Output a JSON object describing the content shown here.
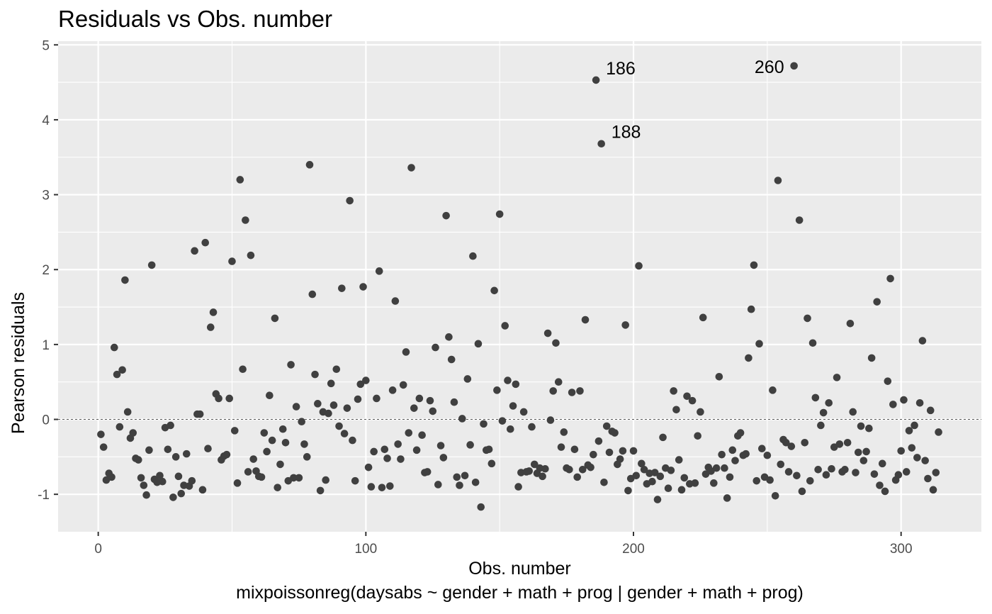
{
  "chart_data": {
    "type": "scatter",
    "title": "Residuals vs Obs. number",
    "xlabel": "Obs. number",
    "ylabel": "Pearson residuals",
    "caption": "mixpoissonreg(daysabs ~ gender + math + prog | gender + math + prog)",
    "xlim": [
      -15,
      330
    ],
    "ylim": [
      -1.5,
      5.05
    ],
    "x_ticks": [
      0,
      100,
      200,
      300
    ],
    "y_ticks": [
      -1,
      0,
      1,
      2,
      3,
      4,
      5
    ],
    "x_tick_labels": [
      "0",
      "100",
      "200",
      "300"
    ],
    "y_tick_labels": [
      "-1",
      "0",
      "1",
      "2",
      "3",
      "4",
      "5"
    ],
    "reference_line": 0,
    "grid": true,
    "panel_color": "#EBEBEB",
    "point_color": "#404040",
    "points": [
      [
        1,
        -0.2
      ],
      [
        2,
        -0.37
      ],
      [
        3,
        -0.81
      ],
      [
        4,
        -0.72
      ],
      [
        5,
        -0.77
      ],
      [
        6,
        0.96
      ],
      [
        7,
        0.6
      ],
      [
        8,
        -0.1
      ],
      [
        9,
        0.66
      ],
      [
        10,
        1.86
      ],
      [
        11,
        0.1
      ],
      [
        12,
        -0.25
      ],
      [
        13,
        -0.18
      ],
      [
        14,
        -0.52
      ],
      [
        15,
        -0.54
      ],
      [
        16,
        -0.78
      ],
      [
        17,
        -0.88
      ],
      [
        18,
        -1.01
      ],
      [
        19,
        -0.41
      ],
      [
        20,
        2.06
      ],
      [
        21,
        -0.8
      ],
      [
        22,
        -0.84
      ],
      [
        23,
        -0.75
      ],
      [
        24,
        -0.83
      ],
      [
        25,
        -0.11
      ],
      [
        26,
        -0.4
      ],
      [
        27,
        -0.08
      ],
      [
        28,
        -1.04
      ],
      [
        29,
        -0.5
      ],
      [
        30,
        -0.76
      ],
      [
        31,
        -0.99
      ],
      [
        32,
        -0.88
      ],
      [
        33,
        -0.46
      ],
      [
        34,
        -0.89
      ],
      [
        35,
        -0.82
      ],
      [
        36,
        2.25
      ],
      [
        37,
        0.07
      ],
      [
        38,
        0.07
      ],
      [
        39,
        -0.94
      ],
      [
        40,
        2.36
      ],
      [
        41,
        -0.39
      ],
      [
        42,
        1.23
      ],
      [
        43,
        1.43
      ],
      [
        44,
        0.34
      ],
      [
        45,
        0.28
      ],
      [
        46,
        -0.54
      ],
      [
        47,
        -0.49
      ],
      [
        48,
        -0.47
      ],
      [
        49,
        0.28
      ],
      [
        50,
        2.11
      ],
      [
        51,
        -0.15
      ],
      [
        52,
        -0.85
      ],
      [
        53,
        3.2
      ],
      [
        54,
        0.67
      ],
      [
        55,
        2.66
      ],
      [
        56,
        -0.7
      ],
      [
        57,
        2.19
      ],
      [
        58,
        -0.53
      ],
      [
        59,
        -0.69
      ],
      [
        60,
        -0.76
      ],
      [
        61,
        -0.77
      ],
      [
        62,
        -0.18
      ],
      [
        63,
        -0.43
      ],
      [
        64,
        0.32
      ],
      [
        65,
        -0.28
      ],
      [
        66,
        1.35
      ],
      [
        67,
        -0.91
      ],
      [
        68,
        -0.6
      ],
      [
        69,
        -0.13
      ],
      [
        70,
        -0.31
      ],
      [
        71,
        -0.82
      ],
      [
        72,
        0.73
      ],
      [
        73,
        -0.78
      ],
      [
        74,
        0.17
      ],
      [
        75,
        -0.78
      ],
      [
        76,
        -0.03
      ],
      [
        77,
        -0.33
      ],
      [
        78,
        -0.5
      ],
      [
        79,
        3.4
      ],
      [
        80,
        1.67
      ],
      [
        81,
        0.6
      ],
      [
        82,
        0.21
      ],
      [
        83,
        -0.95
      ],
      [
        84,
        0.1
      ],
      [
        85,
        -0.81
      ],
      [
        86,
        0.08
      ],
      [
        87,
        0.48
      ],
      [
        88,
        0.19
      ],
      [
        89,
        0.67
      ],
      [
        90,
        -0.09
      ],
      [
        91,
        1.75
      ],
      [
        92,
        -0.19
      ],
      [
        93,
        0.15
      ],
      [
        94,
        2.92
      ],
      [
        95,
        -0.28
      ],
      [
        96,
        -0.82
      ],
      [
        97,
        0.27
      ],
      [
        98,
        0.47
      ],
      [
        99,
        1.77
      ],
      [
        100,
        0.52
      ],
      [
        101,
        -0.64
      ],
      [
        102,
        -0.9
      ],
      [
        103,
        -0.43
      ],
      [
        104,
        0.28
      ],
      [
        105,
        1.98
      ],
      [
        106,
        -0.91
      ],
      [
        107,
        -0.4
      ],
      [
        108,
        -0.52
      ],
      [
        109,
        -0.89
      ],
      [
        110,
        0.39
      ],
      [
        111,
        1.58
      ],
      [
        112,
        -0.33
      ],
      [
        113,
        -0.53
      ],
      [
        114,
        0.46
      ],
      [
        115,
        0.9
      ],
      [
        116,
        -0.18
      ],
      [
        117,
        3.36
      ],
      [
        118,
        0.15
      ],
      [
        119,
        -0.41
      ],
      [
        120,
        0.28
      ],
      [
        121,
        -0.21
      ],
      [
        122,
        -0.71
      ],
      [
        123,
        -0.7
      ],
      [
        124,
        0.25
      ],
      [
        125,
        0.11
      ],
      [
        126,
        0.96
      ],
      [
        127,
        -0.87
      ],
      [
        128,
        -0.35
      ],
      [
        129,
        -0.51
      ],
      [
        130,
        2.72
      ],
      [
        131,
        1.1
      ],
      [
        132,
        0.8
      ],
      [
        133,
        0.23
      ],
      [
        134,
        -0.77
      ],
      [
        135,
        -0.88
      ],
      [
        136,
        0.01
      ],
      [
        137,
        -0.75
      ],
      [
        138,
        0.54
      ],
      [
        139,
        -0.34
      ],
      [
        140,
        2.18
      ],
      [
        141,
        -0.84
      ],
      [
        142,
        1.01
      ],
      [
        143,
        -1.17
      ],
      [
        144,
        -0.06
      ],
      [
        145,
        -0.41
      ],
      [
        146,
        -0.4
      ],
      [
        147,
        -0.59
      ],
      [
        148,
        1.72
      ],
      [
        149,
        0.39
      ],
      [
        150,
        2.74
      ],
      [
        151,
        -0.02
      ],
      [
        152,
        1.25
      ],
      [
        153,
        0.52
      ],
      [
        154,
        -0.13
      ],
      [
        155,
        0.18
      ],
      [
        156,
        0.47
      ],
      [
        157,
        -0.9
      ],
      [
        158,
        -0.71
      ],
      [
        159,
        0.1
      ],
      [
        160,
        -0.7
      ],
      [
        161,
        -0.69
      ],
      [
        162,
        -0.1
      ],
      [
        163,
        -0.6
      ],
      [
        164,
        -0.72
      ],
      [
        165,
        -0.65
      ],
      [
        166,
        -0.76
      ],
      [
        167,
        -0.66
      ],
      [
        168,
        1.15
      ],
      [
        169,
        -0.01
      ],
      [
        170,
        0.38
      ],
      [
        171,
        1.02
      ],
      [
        172,
        0.5
      ],
      [
        173,
        -0.37
      ],
      [
        174,
        -0.17
      ],
      [
        175,
        -0.65
      ],
      [
        176,
        -0.67
      ],
      [
        177,
        0.36
      ],
      [
        178,
        -0.4
      ],
      [
        179,
        -0.77
      ],
      [
        180,
        0.38
      ],
      [
        181,
        -0.67
      ],
      [
        182,
        1.33
      ],
      [
        183,
        -0.61
      ],
      [
        184,
        -0.64
      ],
      [
        185,
        -0.47
      ],
      [
        186,
        4.53
      ],
      [
        187,
        -0.29
      ],
      [
        188,
        3.68
      ],
      [
        189,
        -0.84
      ],
      [
        190,
        -0.09
      ],
      [
        191,
        -0.44
      ],
      [
        192,
        -0.16
      ],
      [
        193,
        -0.18
      ],
      [
        194,
        -0.6
      ],
      [
        195,
        -0.53
      ],
      [
        196,
        -0.42
      ],
      [
        197,
        1.26
      ],
      [
        198,
        -0.95
      ],
      [
        199,
        -0.79
      ],
      [
        200,
        -0.42
      ],
      [
        201,
        -0.75
      ],
      [
        202,
        2.05
      ],
      [
        203,
        -0.59
      ],
      [
        204,
        -0.67
      ],
      [
        205,
        -0.86
      ],
      [
        206,
        -0.72
      ],
      [
        207,
        -0.83
      ],
      [
        208,
        -0.71
      ],
      [
        209,
        -1.07
      ],
      [
        210,
        -0.76
      ],
      [
        211,
        -0.24
      ],
      [
        212,
        -0.65
      ],
      [
        213,
        -0.92
      ],
      [
        214,
        -0.68
      ],
      [
        215,
        0.38
      ],
      [
        216,
        0.13
      ],
      [
        217,
        -0.54
      ],
      [
        218,
        -0.94
      ],
      [
        219,
        -0.78
      ],
      [
        220,
        0.31
      ],
      [
        221,
        -0.86
      ],
      [
        222,
        0.25
      ],
      [
        223,
        -0.85
      ],
      [
        224,
        -0.22
      ],
      [
        225,
        0.1
      ],
      [
        226,
        1.36
      ],
      [
        227,
        -0.73
      ],
      [
        228,
        -0.64
      ],
      [
        229,
        -0.69
      ],
      [
        230,
        -0.85
      ],
      [
        231,
        -0.65
      ],
      [
        232,
        0.57
      ],
      [
        233,
        -0.47
      ],
      [
        234,
        -0.65
      ],
      [
        235,
        -1.05
      ],
      [
        236,
        -0.77
      ],
      [
        237,
        -0.41
      ],
      [
        238,
        -0.55
      ],
      [
        239,
        -0.22
      ],
      [
        240,
        -0.18
      ],
      [
        241,
        -0.48
      ],
      [
        242,
        -0.46
      ],
      [
        243,
        0.82
      ],
      [
        244,
        1.47
      ],
      [
        245,
        2.06
      ],
      [
        246,
        -0.82
      ],
      [
        247,
        1.01
      ],
      [
        248,
        -0.39
      ],
      [
        249,
        -0.77
      ],
      [
        250,
        -0.48
      ],
      [
        251,
        -0.81
      ],
      [
        252,
        0.39
      ],
      [
        253,
        -1.02
      ],
      [
        254,
        3.19
      ],
      [
        255,
        -0.6
      ],
      [
        256,
        -0.27
      ],
      [
        257,
        -0.31
      ],
      [
        258,
        -0.7
      ],
      [
        259,
        -0.36
      ],
      [
        260,
        4.72
      ],
      [
        261,
        -0.75
      ],
      [
        262,
        2.66
      ],
      [
        263,
        -0.96
      ],
      [
        264,
        -0.31
      ],
      [
        265,
        1.35
      ],
      [
        266,
        -0.82
      ],
      [
        267,
        1.02
      ],
      [
        268,
        0.29
      ],
      [
        269,
        -0.67
      ],
      [
        270,
        -0.08
      ],
      [
        271,
        0.09
      ],
      [
        272,
        -0.74
      ],
      [
        273,
        0.22
      ],
      [
        274,
        -0.66
      ],
      [
        275,
        -0.37
      ],
      [
        276,
        0.56
      ],
      [
        277,
        -0.33
      ],
      [
        278,
        -0.7
      ],
      [
        279,
        -0.67
      ],
      [
        280,
        -0.31
      ],
      [
        281,
        1.28
      ],
      [
        282,
        0.1
      ],
      [
        283,
        -0.71
      ],
      [
        284,
        -0.44
      ],
      [
        285,
        -0.09
      ],
      [
        286,
        -0.55
      ],
      [
        287,
        -0.43
      ],
      [
        288,
        -0.12
      ],
      [
        289,
        0.82
      ],
      [
        290,
        -0.73
      ],
      [
        291,
        1.57
      ],
      [
        292,
        -0.88
      ],
      [
        293,
        -0.59
      ],
      [
        294,
        -0.96
      ],
      [
        295,
        0.51
      ],
      [
        296,
        1.88
      ],
      [
        297,
        0.2
      ],
      [
        298,
        -0.81
      ],
      [
        299,
        -0.74
      ],
      [
        300,
        -0.42
      ],
      [
        301,
        0.26
      ],
      [
        302,
        -0.7
      ],
      [
        303,
        -0.15
      ],
      [
        304,
        -0.38
      ],
      [
        305,
        -0.08
      ],
      [
        306,
        -0.51
      ],
      [
        307,
        0.22
      ],
      [
        308,
        1.05
      ],
      [
        309,
        -0.55
      ],
      [
        310,
        -0.79
      ],
      [
        311,
        0.12
      ],
      [
        312,
        -0.94
      ],
      [
        313,
        -0.71
      ],
      [
        314,
        -0.17
      ]
    ],
    "annotations": [
      {
        "text": "186",
        "x": 186,
        "y": 4.53,
        "side": "right"
      },
      {
        "text": "188",
        "x": 188,
        "y": 3.68,
        "side": "right"
      },
      {
        "text": "260",
        "x": 260,
        "y": 4.72,
        "side": "left"
      }
    ]
  }
}
